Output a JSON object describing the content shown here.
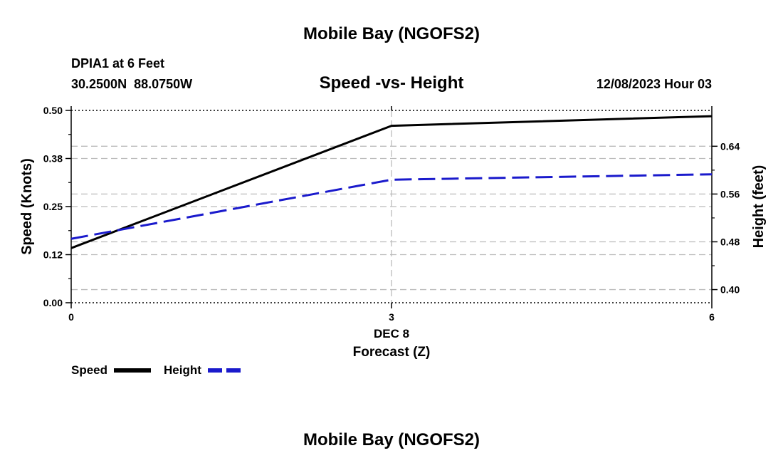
{
  "header": {
    "title": "Mobile Bay (NGOFS2)",
    "station": "DPIA1 at 6 Feet",
    "coords": "30.2500N  88.0750W",
    "plot_title": "Speed -vs- Height",
    "datetime": "12/08/2023 Hour 03"
  },
  "footer": {
    "title": "Mobile Bay (NGOFS2)"
  },
  "legend": {
    "speed_label": "Speed",
    "height_label": "Height"
  },
  "colors": {
    "speed": "#000000",
    "height": "#1a1acc",
    "grid": "#bbbbbb"
  },
  "chart_data": {
    "type": "line",
    "title": "Speed -vs- Height",
    "xlabel": "Forecast (Z)",
    "x_date_label": "DEC 8",
    "x": [
      0,
      3,
      6
    ],
    "x_ticks": [
      0,
      3,
      6
    ],
    "x_tick_labels": [
      "0",
      "3",
      "6"
    ],
    "xlim": [
      0,
      6
    ],
    "ylabel_left": "Speed (Knots)",
    "ylim_left": [
      0,
      0.5
    ],
    "y_ticks_left": [
      0,
      0.125,
      0.25,
      0.375,
      0.5
    ],
    "y_tick_labels_left": [
      "0.00",
      "0.12",
      "0.25",
      "0.38",
      "0.50"
    ],
    "ylabel_right": "Height (feet)",
    "ylim_right": [
      0.378,
      0.7
    ],
    "y_ticks_right": [
      0.4,
      0.48,
      0.56,
      0.64
    ],
    "y_tick_labels_right": [
      "0.40",
      "0.48",
      "0.56",
      "0.64"
    ],
    "series": [
      {
        "name": "Speed",
        "axis": "left",
        "style": "solid",
        "values": [
          0.142,
          0.46,
          0.485
        ]
      },
      {
        "name": "Height",
        "axis": "right",
        "style": "dashed",
        "values": [
          0.485,
          0.584,
          0.593
        ]
      }
    ],
    "legend_position": "bottom-left"
  }
}
